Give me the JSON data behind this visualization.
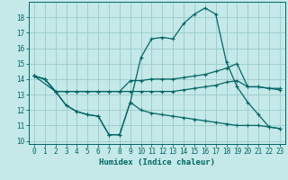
{
  "xlabel": "Humidex (Indice chaleur)",
  "xlim": [
    -0.5,
    23.5
  ],
  "ylim": [
    9.8,
    19.0
  ],
  "yticks": [
    10,
    11,
    12,
    13,
    14,
    15,
    16,
    17,
    18
  ],
  "xticks": [
    0,
    1,
    2,
    3,
    4,
    5,
    6,
    7,
    8,
    9,
    10,
    11,
    12,
    13,
    14,
    15,
    16,
    17,
    18,
    19,
    20,
    21,
    22,
    23
  ],
  "bg_color": "#c5e8e8",
  "grid_color": "#9ecece",
  "line_color": "#006666",
  "line1_x": [
    0,
    1,
    2,
    3,
    4,
    5,
    6,
    7,
    8,
    9,
    10,
    11,
    12,
    13,
    14,
    15,
    16,
    17,
    18,
    19,
    20,
    21,
    22,
    23
  ],
  "line1_y": [
    14.2,
    14.0,
    13.2,
    12.3,
    11.9,
    11.7,
    11.6,
    10.4,
    10.4,
    12.5,
    15.4,
    16.6,
    16.7,
    16.6,
    17.6,
    18.2,
    18.6,
    18.2,
    15.1,
    13.5,
    12.5,
    11.7,
    10.9,
    10.8
  ],
  "line2_x": [
    0,
    1,
    2,
    3,
    4,
    5,
    6,
    7,
    8,
    9,
    10,
    11,
    12,
    13,
    14,
    15,
    16,
    17,
    18,
    19,
    20,
    21,
    22,
    23
  ],
  "line2_y": [
    14.2,
    14.0,
    13.2,
    13.2,
    13.2,
    13.2,
    13.2,
    13.2,
    13.2,
    13.9,
    13.9,
    14.0,
    14.0,
    14.0,
    14.1,
    14.2,
    14.3,
    14.5,
    14.7,
    15.0,
    13.5,
    13.5,
    13.4,
    13.4
  ],
  "line3_x": [
    0,
    2,
    3,
    4,
    5,
    6,
    7,
    8,
    9,
    10,
    11,
    12,
    13,
    14,
    15,
    16,
    17,
    18,
    19,
    20,
    21,
    22,
    23
  ],
  "line3_y": [
    14.2,
    13.2,
    13.2,
    13.2,
    13.2,
    13.2,
    13.2,
    13.2,
    13.2,
    13.2,
    13.2,
    13.2,
    13.2,
    13.3,
    13.4,
    13.5,
    13.6,
    13.8,
    13.9,
    13.5,
    13.5,
    13.4,
    13.3
  ],
  "line4_x": [
    0,
    1,
    2,
    3,
    4,
    5,
    6,
    7,
    8,
    9,
    10,
    11,
    12,
    13,
    14,
    15,
    16,
    17,
    18,
    19,
    20,
    21,
    22,
    23
  ],
  "line4_y": [
    14.2,
    14.0,
    13.2,
    12.3,
    11.9,
    11.7,
    11.6,
    10.4,
    10.4,
    12.5,
    12.0,
    11.8,
    11.7,
    11.6,
    11.5,
    11.4,
    11.3,
    11.2,
    11.1,
    11.0,
    11.0,
    11.0,
    10.9,
    10.8
  ]
}
